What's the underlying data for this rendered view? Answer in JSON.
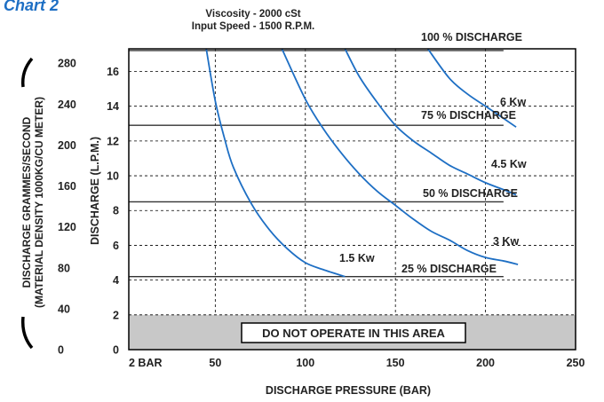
{
  "chart_data": {
    "type": "line",
    "title": "Chart 2",
    "subtitle_lines": [
      "Viscosity - 2000 cSt",
      "Input Speed - 1500 R.P.M."
    ],
    "xlabel": "DISCHARGE PRESSURE (BAR)",
    "ylabel": "DISCHARGE (L.P.M.)",
    "ylabel2_lines": [
      "DISCHARGE GRAMMES/SECOND",
      "(MATERIAL DENSITY 1000KG/CU METER)"
    ],
    "xlim": [
      2,
      250
    ],
    "ylim": [
      0,
      17.3
    ],
    "y2lim": [
      0,
      294
    ],
    "x_ticks": [
      {
        "value": 2,
        "label": "2 BAR"
      },
      {
        "value": 50,
        "label": "50"
      },
      {
        "value": 100,
        "label": "100"
      },
      {
        "value": 150,
        "label": "150"
      },
      {
        "value": 200,
        "label": "200"
      },
      {
        "value": 250,
        "label": "250"
      }
    ],
    "y_ticks": [
      0,
      2,
      4,
      6,
      8,
      10,
      12,
      14,
      16
    ],
    "y2_ticks": [
      0,
      40,
      80,
      120,
      160,
      200,
      240,
      280
    ],
    "grid": true,
    "no_operate_zone": {
      "y_max": 2,
      "label": "DO NOT OPERATE IN THIS AREA"
    },
    "discharge_lines": [
      {
        "name": "100 % DISCHARGE",
        "y": 17.2,
        "x_end": 210
      },
      {
        "name": "75 % DISCHARGE",
        "y": 12.9,
        "x_end": 210
      },
      {
        "name": "50 % DISCHARGE",
        "y": 8.5,
        "x_end": 210
      },
      {
        "name": "25 % DISCHARGE",
        "y": 4.2,
        "x_end": 210
      }
    ],
    "series": [
      {
        "name": "1.5 Kw",
        "x": [
          45,
          50,
          55,
          60,
          70,
          80,
          90,
          100,
          110,
          122
        ],
        "y": [
          17.3,
          14.3,
          12.2,
          10.5,
          8.4,
          6.9,
          5.8,
          5.0,
          4.6,
          4.2
        ]
      },
      {
        "name": "3 Kw",
        "x": [
          87,
          100,
          110,
          120,
          130,
          140,
          150,
          160,
          170,
          180,
          190,
          200,
          210,
          218
        ],
        "y": [
          17.3,
          14.4,
          12.7,
          11.3,
          10.1,
          9.1,
          8.3,
          7.5,
          6.8,
          6.3,
          5.7,
          5.3,
          5.1,
          4.9
        ]
      },
      {
        "name": "4.5 Kw",
        "x": [
          122,
          130,
          140,
          150,
          160,
          170,
          180,
          190,
          200,
          210,
          217
        ],
        "y": [
          17.3,
          15.7,
          14.2,
          12.9,
          12.0,
          11.3,
          10.6,
          10.1,
          9.6,
          9.2,
          8.9
        ]
      },
      {
        "name": "6 Kw",
        "x": [
          168,
          180,
          190,
          200,
          210,
          217
        ],
        "y": [
          17.3,
          15.6,
          14.7,
          14.0,
          13.3,
          12.8
        ]
      }
    ]
  }
}
